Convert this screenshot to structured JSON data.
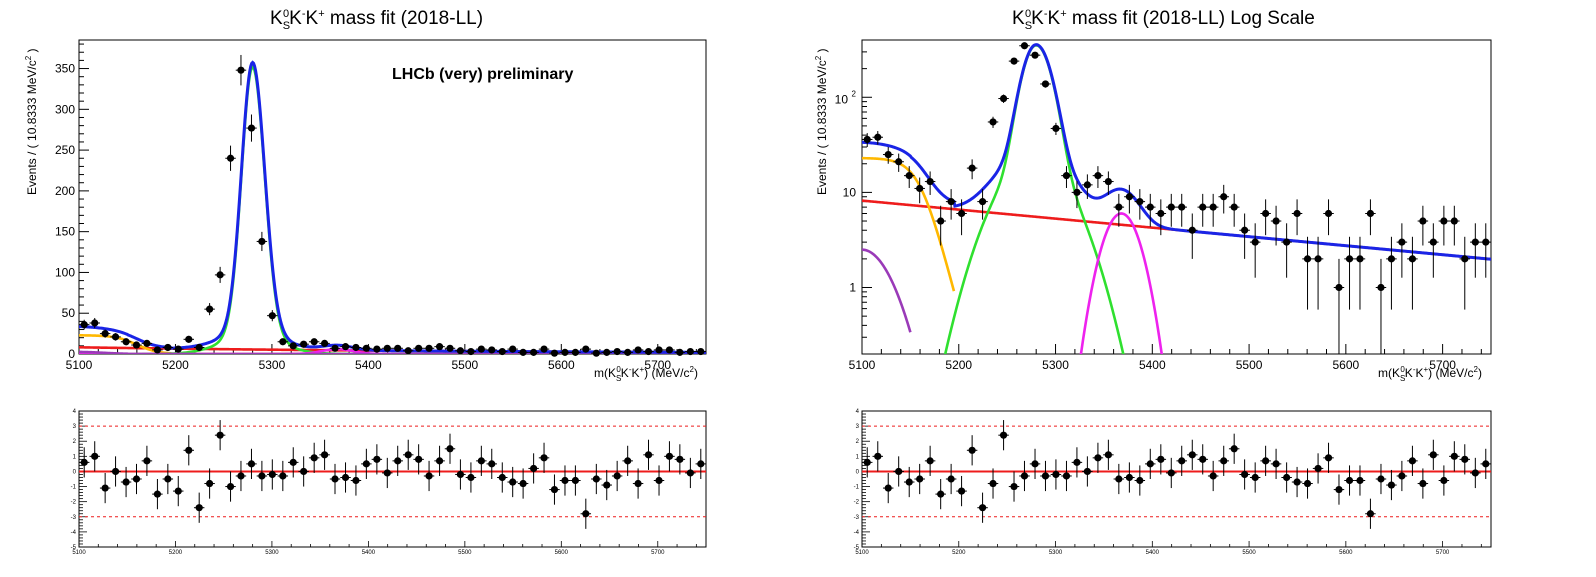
{
  "chart_data": [
    {
      "type": "scatter",
      "id": "linear",
      "title": "K_S^0K^-K^+ mass fit (2018-LL)",
      "title_parts": {
        "K": "K",
        "S": "S",
        "zero": "0",
        "K2": "K",
        "minus": "-",
        "K3": "K",
        "plus": "+",
        "rest": " mass fit (2018-LL)"
      },
      "xlabel": "m(K_S^0K^-K^+) (MeV/c^2)",
      "xlabel_parts": {
        "pre": "m(K",
        "S": "S",
        "zero": "0",
        "mid": "K",
        "minus": "-",
        "mid2": "K",
        "plus": "+",
        "post": ") (MeV/c",
        "two": "2",
        "end": ")"
      },
      "ylabel": "Events / ( 10.8333 MeV/c^2 )",
      "ylabel_parts": {
        "pre": "Events / ( 10.8333 MeV/c",
        "two": "2",
        "post": " )"
      },
      "annotation": "LHCb (very) preliminary",
      "xlim": [
        5100,
        5750
      ],
      "ylim": [
        0,
        385
      ],
      "yscale": "linear",
      "x_ticks": [
        "5100",
        "5200",
        "5300",
        "5400",
        "5500",
        "5600",
        "5700"
      ],
      "y_ticks": [
        "0",
        "50",
        "100",
        "150",
        "200",
        "250",
        "300",
        "350"
      ],
      "bin_width": 10.8333,
      "points": {
        "x": [
          5105.4,
          5116.3,
          5127.1,
          5137.9,
          5148.8,
          5159.6,
          5170.4,
          5181.3,
          5192.1,
          5202.9,
          5213.8,
          5224.6,
          5235.4,
          5246.3,
          5257.1,
          5267.9,
          5278.8,
          5289.6,
          5300.4,
          5311.3,
          5322.1,
          5332.9,
          5343.8,
          5354.6,
          5365.4,
          5376.3,
          5387.1,
          5397.9,
          5408.8,
          5419.6,
          5430.4,
          5441.3,
          5452.1,
          5462.9,
          5473.8,
          5484.6,
          5495.4,
          5506.3,
          5517.1,
          5527.9,
          5538.8,
          5549.6,
          5560.4,
          5571.3,
          5582.1,
          5592.9,
          5603.8,
          5614.6,
          5625.4,
          5636.3,
          5647.1,
          5657.9,
          5668.8,
          5679.6,
          5690.4,
          5701.3,
          5712.1,
          5722.9,
          5733.8,
          5744.6
        ],
        "y": [
          36,
          38,
          25,
          21,
          15,
          11,
          13,
          5,
          8,
          6,
          18,
          8,
          55,
          97,
          240,
          348,
          277,
          138,
          47,
          15,
          10,
          12,
          15,
          13,
          7,
          9,
          8,
          7,
          6,
          7,
          7,
          4,
          7,
          7,
          9,
          7,
          4,
          3,
          6,
          5,
          3,
          6,
          2,
          2,
          6,
          1,
          2,
          2,
          6,
          1,
          2,
          3,
          2,
          5,
          3,
          5,
          5,
          2,
          3,
          3
        ]
      },
      "series": [
        {
          "name": "total",
          "color": "#1a24e6"
        },
        {
          "name": "signal",
          "color": "#2fe02f"
        },
        {
          "name": "combinatorial",
          "color": "#ee1c1c"
        },
        {
          "name": "low-mass",
          "color": "#ffb800"
        },
        {
          "name": "peaking",
          "color": "#ee22ee"
        },
        {
          "name": "other",
          "color": "#9a3ab8"
        }
      ]
    },
    {
      "type": "scatter",
      "id": "log",
      "title": "K_S^0K^-K^+ mass fit (2018-LL) Log Scale",
      "title_parts": {
        "K": "K",
        "S": "S",
        "zero": "0",
        "K2": "K",
        "minus": "-",
        "K3": "K",
        "plus": "+",
        "rest": " mass fit (2018-LL) Log Scale"
      },
      "xlabel": "m(K_S^0K^-K^+) (MeV/c^2)",
      "ylabel": "Events / ( 10.8333 MeV/c^2 )",
      "xlim": [
        5100,
        5750
      ],
      "ylim": [
        0.2,
        400
      ],
      "yscale": "log",
      "x_ticks": [
        "5100",
        "5200",
        "5300",
        "5400",
        "5500",
        "5600",
        "5700"
      ],
      "y_ticks": [
        "1",
        "10",
        "10^2"
      ],
      "y_tick_parts": {
        "one": "1",
        "ten": "10",
        "hundred_base": "10",
        "hundred_exp": "2"
      }
    }
  ],
  "residuals": {
    "type": "scatter",
    "ylim": [
      -5,
      4
    ],
    "y_ticks": [
      "-5",
      "-4",
      "-3",
      "-2",
      "-1",
      "0",
      "1",
      "2",
      "3",
      "4"
    ],
    "x_ticks": [
      "5100",
      "5200",
      "5300",
      "5400",
      "5500",
      "5600",
      "5700"
    ],
    "bands": [
      -3,
      0,
      3
    ],
    "pulls": [
      0.6,
      1.0,
      -1.1,
      0.0,
      -0.7,
      -0.5,
      0.7,
      -1.5,
      -0.5,
      -1.3,
      1.4,
      -2.4,
      -0.8,
      2.4,
      -1.0,
      -0.3,
      0.5,
      -0.3,
      -0.2,
      -0.3,
      0.6,
      0.0,
      0.9,
      1.1,
      -0.5,
      -0.4,
      -0.6,
      0.5,
      0.8,
      -0.1,
      0.7,
      1.1,
      0.8,
      -0.3,
      0.7,
      1.5,
      -0.2,
      -0.4,
      0.7,
      0.5,
      -0.4,
      -0.7,
      -0.8,
      0.2,
      0.9,
      -1.2,
      -0.6,
      -0.6,
      -2.8,
      -0.5,
      -0.9,
      -0.3,
      0.7,
      -0.8,
      1.1,
      -0.6,
      1.0,
      0.8,
      -0.1,
      0.5
    ]
  }
}
